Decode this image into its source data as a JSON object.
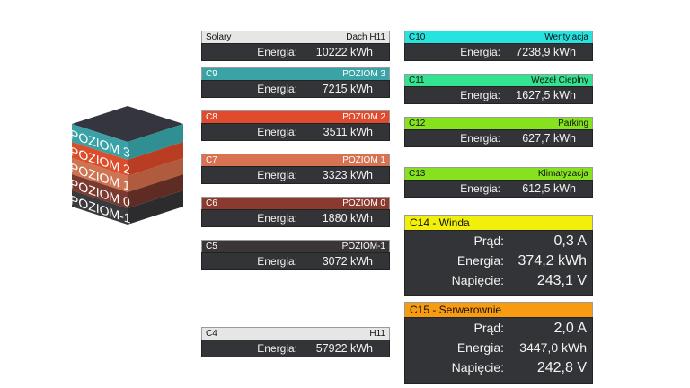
{
  "cube": {
    "levels": [
      "POZIOM 3",
      "POZIOM 2",
      "POZIOM 1",
      "POZIOM 0",
      "POZIOM-1"
    ],
    "colors": [
      "#3a9fa3",
      "#cf4a2b",
      "#c46b4e",
      "#7a3a2f",
      "#3a3a3c"
    ],
    "top_color": "#34353f"
  },
  "left_panels": [
    {
      "id": "Solary",
      "name": "Dach H11",
      "label": "Energia:",
      "value": "10222 kWh",
      "color": "#e6e6e6"
    },
    {
      "id": "C9",
      "name": "POZIOM 3",
      "label": "Energia:",
      "value": "7215 kWh",
      "color": "#3aa3a6"
    },
    {
      "id": "C8",
      "name": "POZIOM 2",
      "label": "Energia:",
      "value": "3511 kWh",
      "color": "#e14b2d"
    },
    {
      "id": "C7",
      "name": "POZIOM 1",
      "label": "Energia:",
      "value": "3323 kWh",
      "color": "#d77352"
    },
    {
      "id": "C6",
      "name": "POZIOM 0",
      "label": "Energia:",
      "value": "1880 kWh",
      "color": "#8a3a2f"
    },
    {
      "id": "C5",
      "name": "POZIOM-1",
      "label": "Energia:",
      "value": "3072 kWh",
      "color": "#3a3536"
    },
    {
      "id": "C4",
      "name": "H11",
      "label": "Energia:",
      "value": "57922 kWh",
      "color": "#e6e6e6"
    }
  ],
  "right_panels": [
    {
      "id": "C10",
      "name": "Wentylacja",
      "label": "Energia:",
      "value": "7238,9 kWh",
      "color": "#27e3e0"
    },
    {
      "id": "C11",
      "name": "Węzeł Cieplny",
      "label": "Energia:",
      "value": "1627,5 kWh",
      "color": "#33e38f"
    },
    {
      "id": "C12",
      "name": "Parking",
      "label": "Energia:",
      "value": "627,7 kWh",
      "color": "#86e21f"
    },
    {
      "id": "C13",
      "name": "Klimatyzacja",
      "label": "Energia:",
      "value": "612,5 kWh",
      "color": "#86e21f"
    }
  ],
  "big_panels": [
    {
      "title": "C14 - Winda",
      "color": "#f2ef0a",
      "rows": [
        {
          "label": "Prąd:",
          "value": "0,3 A"
        },
        {
          "label": "Energia:",
          "value": "374,2 kWh"
        },
        {
          "label": "Napięcie:",
          "value": "243,1 V"
        }
      ]
    },
    {
      "title": "C15 - Serwerownie",
      "color": "#f79b10",
      "rows": [
        {
          "label": "Prąd:",
          "value": "2,0 A"
        },
        {
          "label": "Energia:",
          "value": "3447,0 kWh"
        },
        {
          "label": "Napięcie:",
          "value": "242,8 V"
        }
      ]
    }
  ]
}
